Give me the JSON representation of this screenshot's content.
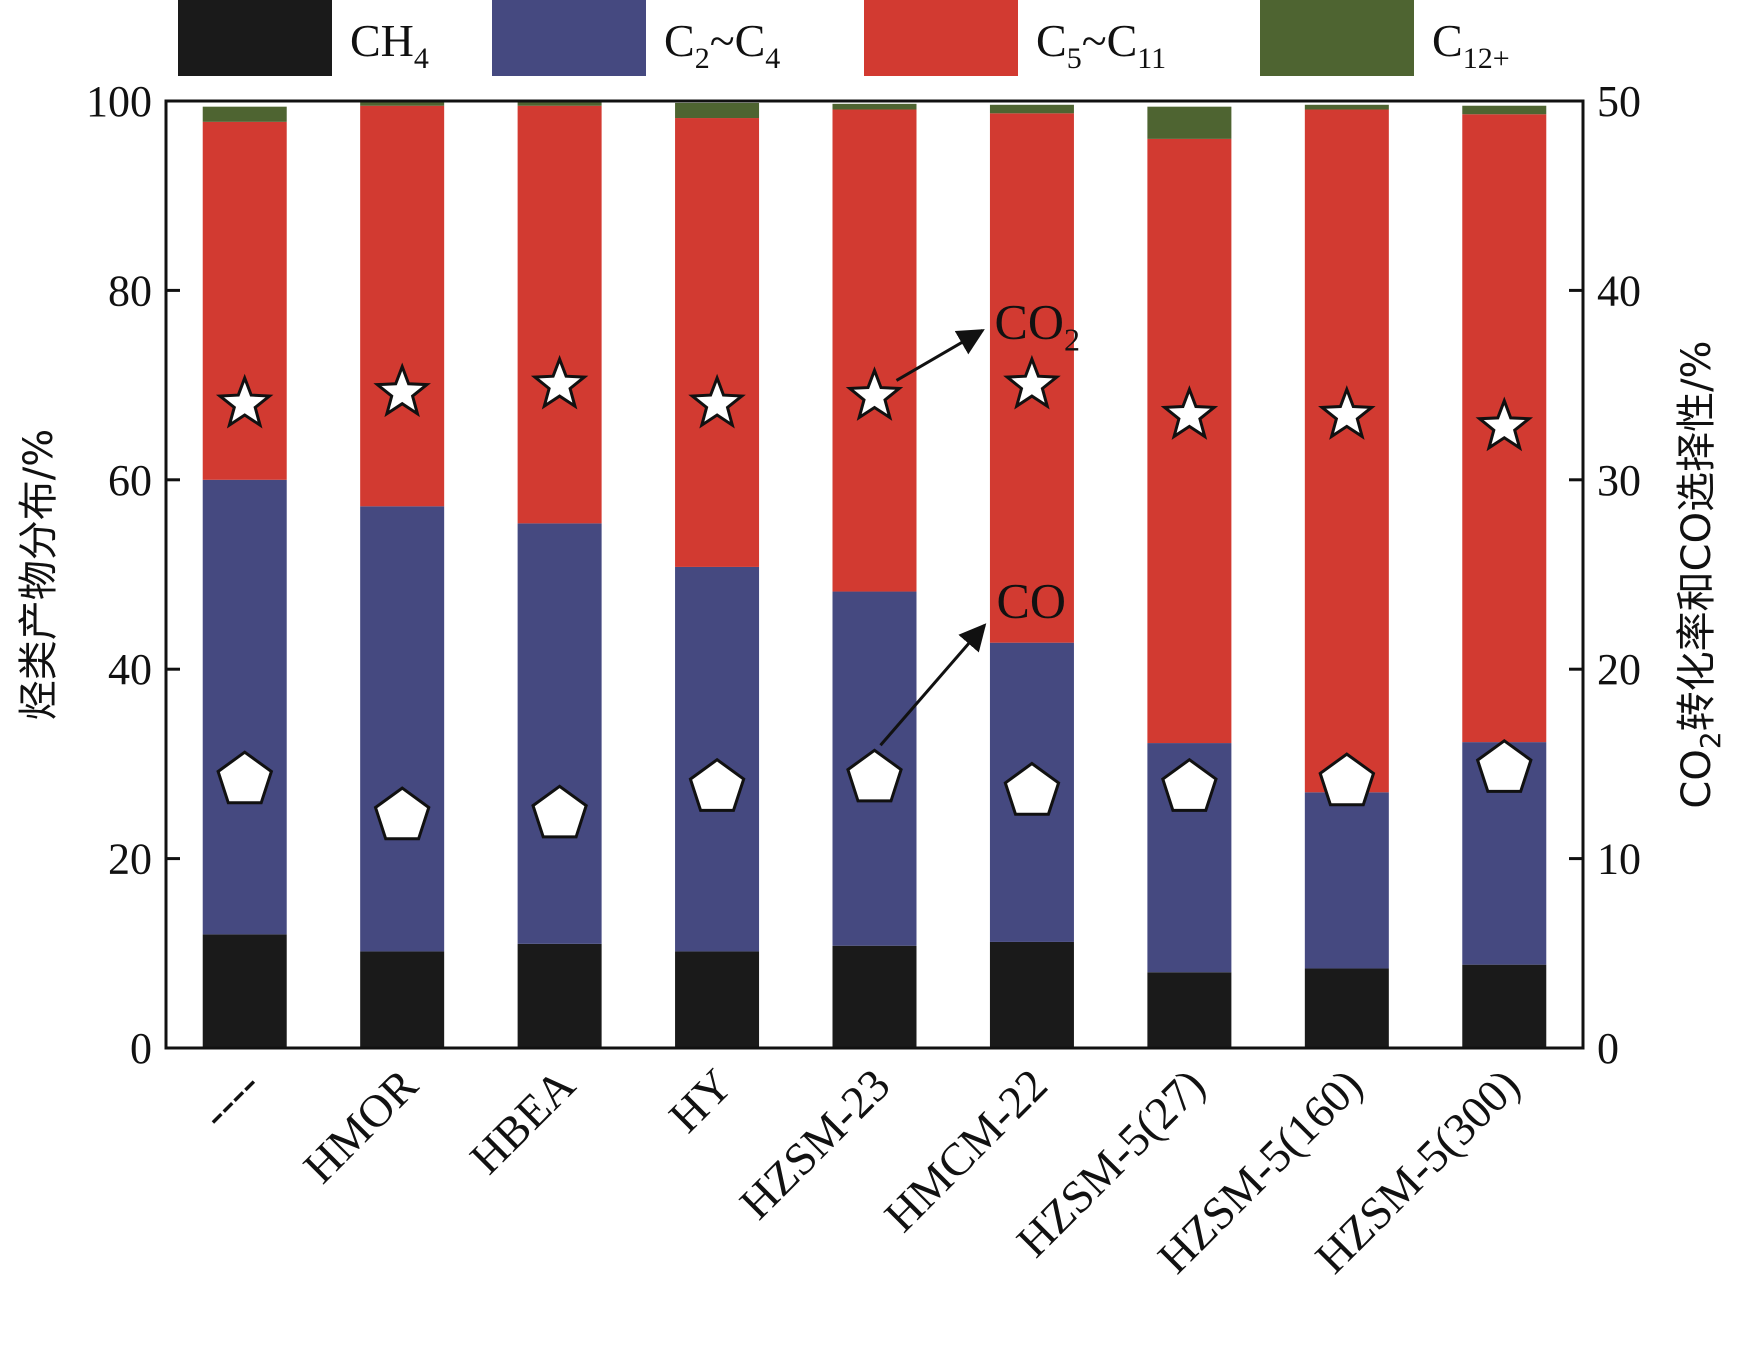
{
  "chart_data": {
    "type": "bar",
    "stacked": true,
    "title": "",
    "categories": [
      "----",
      "HMOR",
      "HBEA",
      "HY",
      "HZSM-23",
      "HMCM-22",
      "HZSM-5(27)",
      "HZSM-5(160)",
      "HZSM-5(300)"
    ],
    "series": [
      {
        "name": "CH4",
        "label_main": "CH",
        "label_sub": "4",
        "label_tail": "",
        "color": "#1a1a1a",
        "values": [
          12.0,
          10.2,
          11.0,
          10.2,
          10.8,
          11.2,
          8.0,
          8.4,
          8.8
        ]
      },
      {
        "name": "C2~C4",
        "label_main": "C",
        "label_sub": "2",
        "label_tail": "~C4",
        "color": "#454980",
        "values": [
          48.0,
          47.0,
          44.4,
          40.6,
          37.4,
          31.6,
          24.2,
          18.6,
          23.5
        ]
      },
      {
        "name": "C5~C11",
        "label_main": "C",
        "label_sub": "5",
        "label_tail": "~C11",
        "color": "#d23a31",
        "values": [
          37.8,
          42.3,
          44.1,
          47.4,
          50.9,
          55.9,
          63.8,
          72.1,
          66.3
        ]
      },
      {
        "name": "C12+",
        "label_main": "C",
        "label_sub": "12+",
        "label_tail": "",
        "color": "#4e6431",
        "values": [
          1.6,
          0.5,
          0.5,
          1.6,
          0.6,
          0.9,
          3.4,
          0.5,
          0.9
        ]
      }
    ],
    "left_axis": {
      "label": "烃类产物分布/%",
      "ylim": [
        0,
        100
      ],
      "ticks": [
        0,
        20,
        40,
        60,
        80,
        100
      ]
    },
    "right_axis": {
      "label_prefix": "CO",
      "label_sub": "2",
      "label_rest": "转化率和CO选择性/%",
      "ylim": [
        0,
        50
      ],
      "ticks": [
        0,
        10,
        20,
        30,
        40,
        50
      ]
    },
    "markers": {
      "co2_conversion": {
        "shape": "star",
        "axis": "right",
        "values": [
          34.0,
          34.6,
          35.0,
          34.0,
          34.4,
          35.0,
          33.4,
          33.4,
          32.8
        ]
      },
      "co_selectivity": {
        "shape": "pentagon",
        "axis": "right",
        "values": [
          14.3,
          12.4,
          12.5,
          13.9,
          14.4,
          13.7,
          13.9,
          14.2,
          14.9
        ]
      }
    },
    "annotations": [
      {
        "text_main": "CO",
        "text_sub": "2",
        "points_to": "co2_conversion"
      },
      {
        "text_main": "CO",
        "text_sub": "",
        "points_to": "co_selectivity"
      }
    ],
    "legend": {
      "position": "top"
    },
    "grid": false
  }
}
